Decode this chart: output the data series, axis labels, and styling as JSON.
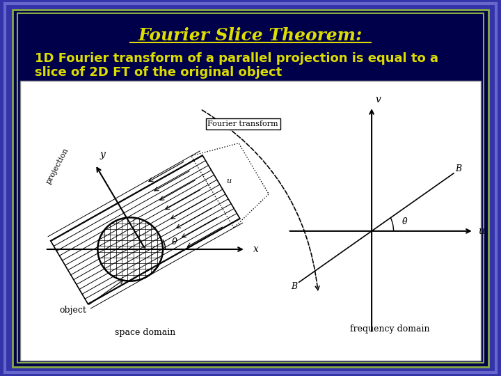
{
  "title": "Fourier Slice Theorem:",
  "subtitle_line1": "1D Fourier transform of a parallel projection is equal to a",
  "subtitle_line2": "slice of 2D FT of the original object",
  "bg_outer": "#3333aa",
  "bg_inner": "#00004a",
  "bg_content": "#f0f0f0",
  "title_color": "#dddd00",
  "subtitle_color": "#dddd00",
  "border_color1": "#6666cc",
  "border_color2": "#88aa44",
  "title_fontsize": 18,
  "subtitle_fontsize": 13
}
